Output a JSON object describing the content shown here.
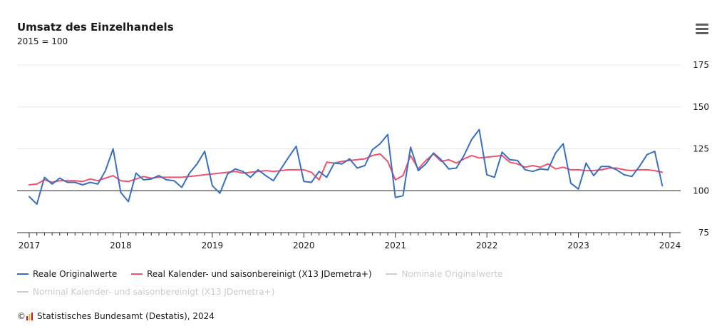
{
  "title": "Umsatz des Einzelhandels",
  "subtitle": "2015 = 100",
  "credit": {
    "symbol": "©",
    "text": "Statistisches Bundesamt (Destatis), 2024"
  },
  "menu": {
    "icon": "hamburger-menu-icon"
  },
  "colors": {
    "real_original": "#3b6fbb",
    "real_adjusted": "#f0526f",
    "inactive": "#cccccc",
    "grid": "#e8e8e8",
    "reference_line": "#4a4a4a",
    "axis": "#333333"
  },
  "chart_data": {
    "type": "line",
    "title": "Umsatz des Einzelhandels",
    "subtitle": "2015 = 100",
    "xlabel": "",
    "ylabel": "",
    "x_start": "2017-01",
    "x_end": "2024-01",
    "x_ticks": [
      "2017",
      "2018",
      "2019",
      "2020",
      "2021",
      "2022",
      "2023",
      "2024"
    ],
    "y_ticks": [
      75,
      100,
      125,
      150,
      175
    ],
    "ylim": [
      75,
      175
    ],
    "y_axis_side": "right",
    "reference_line": 100,
    "grid": true,
    "legend_position": "bottom",
    "series": [
      {
        "name": "Reale Originalwerte",
        "visible": true,
        "values": [
          96.5,
          92,
          108,
          104,
          107.5,
          105,
          105,
          103.5,
          105,
          104,
          112,
          125,
          99,
          93.5,
          110.5,
          106.5,
          107,
          109,
          106.5,
          106,
          102,
          110.5,
          116,
          123.5,
          103,
          98.5,
          110,
          113,
          111.5,
          108,
          112.5,
          109,
          106,
          113,
          120,
          126.5,
          105.5,
          105,
          111.5,
          108,
          116.5,
          116,
          119,
          113.5,
          115,
          124.5,
          128,
          133.5,
          96,
          97,
          126,
          112,
          116,
          122.5,
          118.5,
          113,
          113.5,
          121,
          130.5,
          136.5,
          109.5,
          108,
          123,
          118.5,
          118,
          112.5,
          111.5,
          113,
          112.5,
          122.5,
          128,
          104.5,
          101,
          116.5,
          109,
          114.5,
          114.5,
          112.5,
          109.5,
          108.5,
          114.5,
          121.5,
          123.5,
          103
        ]
      },
      {
        "name": "Real Kalender- und saisonbereinigt (X13 JDemetra+)",
        "visible": true,
        "values": [
          103.5,
          104,
          106.5,
          105,
          106,
          106,
          106,
          105.5,
          107,
          106,
          107.5,
          109,
          106,
          105.5,
          107,
          108.5,
          107.5,
          108,
          108,
          108,
          108,
          108.5,
          109,
          109.5,
          110,
          110.5,
          111,
          111.5,
          110.5,
          111,
          111.5,
          112,
          111.5,
          112,
          112.5,
          112.5,
          112.5,
          111,
          106.5,
          117,
          116.5,
          117.5,
          118,
          118.5,
          119,
          121,
          122,
          117.5,
          106.5,
          109,
          121,
          113,
          118,
          122,
          117.5,
          118.5,
          116.5,
          119,
          121,
          119.5,
          120,
          120.5,
          121,
          117,
          116,
          114,
          115,
          114,
          116,
          113,
          114,
          112.5,
          112.5,
          112,
          112,
          112.5,
          113.5,
          113.5,
          112.5,
          112,
          112.5,
          112.5,
          112,
          111
        ]
      },
      {
        "name": "Nominale Originalwerte",
        "visible": false,
        "values": []
      },
      {
        "name": "Nominal Kalender- und saisonbereinigt (X13 JDemetra+)",
        "visible": false,
        "values": []
      }
    ]
  }
}
